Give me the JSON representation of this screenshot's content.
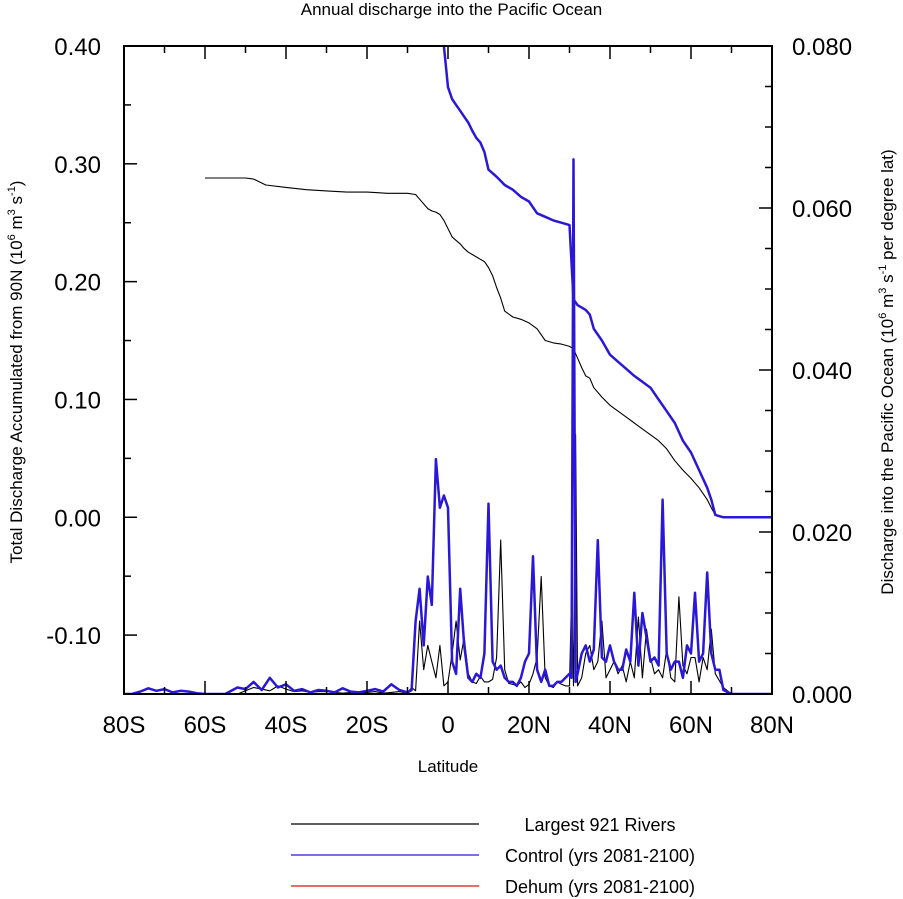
{
  "chart_data": {
    "type": "line",
    "title": "Annual discharge into the Pacific Ocean",
    "xlabel": "Latitude",
    "ylabel_left": "Total Discharge Accumulated from 90N (10⁶ m³ s⁻¹)",
    "ylabel_left_parts": {
      "pre": "Total Discharge Accumulated from 90N (10",
      "e1": "6",
      "mid1": " m",
      "e2": "3",
      "mid2": " s",
      "e3": "-1",
      "post": ")"
    },
    "ylabel_right": "Discharge into the Pacific Ocean (10⁶ m³ s⁻¹ per degree lat)",
    "ylabel_right_parts": {
      "pre": "Discharge into the Pacific Ocean (10",
      "e1": "6",
      "mid1": " m",
      "e2": "3",
      "mid2": " s",
      "e3": "-1",
      "post": " per degree lat)"
    },
    "xlim": [
      -80,
      80
    ],
    "ylim_left": [
      -0.15,
      0.4
    ],
    "ylim_right": [
      0.0,
      0.08
    ],
    "x_ticks": [
      {
        "value": -80,
        "label": "80S"
      },
      {
        "value": -60,
        "label": "60S"
      },
      {
        "value": -40,
        "label": "40S"
      },
      {
        "value": -20,
        "label": "20S"
      },
      {
        "value": 0,
        "label": "0"
      },
      {
        "value": 20,
        "label": "20N"
      },
      {
        "value": 40,
        "label": "40N"
      },
      {
        "value": 60,
        "label": "60N"
      },
      {
        "value": 80,
        "label": "80N"
      }
    ],
    "y_left_ticks": [
      {
        "value": 0.4,
        "label": "0.40"
      },
      {
        "value": 0.3,
        "label": "0.30"
      },
      {
        "value": 0.2,
        "label": "0.20"
      },
      {
        "value": 0.1,
        "label": "0.10"
      },
      {
        "value": 0.0,
        "label": "0.00"
      },
      {
        "value": -0.1,
        "label": "-0.10"
      }
    ],
    "y_right_ticks": [
      {
        "value": 0.08,
        "label": "0.080"
      },
      {
        "value": 0.06,
        "label": "0.060"
      },
      {
        "value": 0.04,
        "label": "0.040"
      },
      {
        "value": 0.02,
        "label": "0.020"
      },
      {
        "value": 0.0,
        "label": "0.000"
      }
    ],
    "grid": false,
    "legend_position": "bottom-center",
    "series": [
      {
        "name": "Largest 921 Rivers",
        "color": "#000000",
        "axis": "left",
        "x": [
          -60,
          -50,
          -48,
          -45,
          -40,
          -35,
          -30,
          -25,
          -20,
          -15,
          -10,
          -8,
          -7,
          -5,
          -4,
          -3,
          -2,
          -1,
          0,
          1,
          2,
          3,
          4,
          5,
          6,
          7,
          8,
          9,
          10,
          11,
          12,
          13,
          14,
          16,
          18,
          20,
          22,
          24,
          26,
          28,
          30,
          31,
          32,
          33,
          34,
          35,
          36,
          38,
          40,
          42,
          44,
          46,
          48,
          50,
          52,
          54,
          56,
          58,
          60,
          62,
          64,
          65,
          66,
          68,
          70,
          75,
          80
        ],
        "y": [
          0.288,
          0.288,
          0.287,
          0.282,
          0.28,
          0.278,
          0.277,
          0.276,
          0.276,
          0.275,
          0.275,
          0.274,
          0.27,
          0.262,
          0.26,
          0.259,
          0.257,
          0.252,
          0.245,
          0.238,
          0.235,
          0.232,
          0.228,
          0.225,
          0.223,
          0.221,
          0.219,
          0.217,
          0.212,
          0.205,
          0.195,
          0.186,
          0.175,
          0.17,
          0.168,
          0.165,
          0.16,
          0.15,
          0.148,
          0.147,
          0.145,
          0.143,
          0.135,
          0.127,
          0.12,
          0.118,
          0.11,
          0.102,
          0.095,
          0.09,
          0.085,
          0.08,
          0.075,
          0.07,
          0.065,
          0.058,
          0.048,
          0.04,
          0.033,
          0.025,
          0.015,
          0.008,
          0.002,
          0.0,
          0.0,
          0.0,
          0.0
        ]
      },
      {
        "name": "Control (yrs 2081-2100)",
        "color": "#2a18d6",
        "axis": "left",
        "x": [
          -1,
          0,
          1,
          2,
          3,
          4,
          5,
          6,
          7,
          8,
          9,
          10,
          11,
          12,
          14,
          16,
          18,
          20,
          22,
          24,
          26,
          28,
          30,
          31,
          32,
          33,
          34,
          35,
          36,
          38,
          40,
          42,
          44,
          46,
          48,
          50,
          52,
          54,
          56,
          58,
          60,
          62,
          64,
          65,
          66,
          68,
          70,
          75,
          80
        ],
        "y": [
          0.4,
          0.365,
          0.355,
          0.35,
          0.345,
          0.34,
          0.335,
          0.328,
          0.322,
          0.318,
          0.31,
          0.295,
          0.292,
          0.289,
          0.282,
          0.278,
          0.272,
          0.268,
          0.258,
          0.255,
          0.252,
          0.25,
          0.248,
          0.185,
          0.18,
          0.178,
          0.176,
          0.172,
          0.16,
          0.15,
          0.138,
          0.132,
          0.126,
          0.12,
          0.115,
          0.11,
          0.1,
          0.09,
          0.08,
          0.065,
          0.055,
          0.04,
          0.025,
          0.015,
          0.002,
          0.0,
          0.0,
          0.0,
          0.0
        ]
      },
      {
        "name": "Dehum (yrs 2081-2100)",
        "color": "#e01010",
        "axis": "left",
        "x": [],
        "y": []
      },
      {
        "name": "Largest 921 Rivers",
        "color": "#000000",
        "axis": "right",
        "show_in_legend": false,
        "x": [
          -80,
          -75,
          -70,
          -65,
          -60,
          -55,
          -52,
          -50,
          -48,
          -46,
          -44,
          -42,
          -40,
          -38,
          -36,
          -34,
          -32,
          -30,
          -28,
          -26,
          -24,
          -22,
          -20,
          -18,
          -16,
          -14,
          -12,
          -10,
          -9,
          -8,
          -7,
          -6,
          -5,
          -4,
          -3,
          -2,
          -1,
          0,
          1,
          2,
          3,
          4,
          5,
          6,
          7,
          8,
          9,
          10,
          11,
          12,
          13,
          14,
          15,
          16,
          17,
          18,
          19,
          20,
          21,
          22,
          23,
          24,
          25,
          26,
          27,
          28,
          29,
          30,
          30.5,
          31,
          31.5,
          32,
          33,
          34,
          35,
          36,
          37,
          38,
          39,
          40,
          41,
          42,
          43,
          44,
          45,
          46,
          47,
          48,
          49,
          50,
          51,
          52,
          53,
          54,
          55,
          56,
          57,
          58,
          59,
          60,
          61,
          62,
          63,
          64,
          65,
          66,
          68,
          70,
          75,
          80
        ],
        "y": [
          0.0,
          0.0,
          0.0,
          0.0,
          0.0,
          0.0,
          0.0,
          0.0004,
          0.0008,
          0.0006,
          0.0004,
          0.001,
          0.0006,
          0.0003,
          0.0004,
          0.0002,
          0.0003,
          0.0003,
          0.0002,
          0.0001,
          0.0002,
          0.0001,
          0.0002,
          0.0003,
          0.0001,
          0.0002,
          0.0003,
          0.0001,
          0.0008,
          0.0004,
          0.009,
          0.003,
          0.006,
          0.004,
          0.002,
          0.006,
          0.001,
          0.0015,
          0.005,
          0.009,
          0.0042,
          0.007,
          0.0025,
          0.0015,
          0.0013,
          0.0022,
          0.0015,
          0.0015,
          0.0018,
          0.0045,
          0.019,
          0.003,
          0.0013,
          0.0012,
          0.001,
          0.0015,
          0.0008,
          0.0012,
          0.0025,
          0.0045,
          0.0145,
          0.002,
          0.001,
          0.0008,
          0.0015,
          0.0012,
          0.001,
          0.001,
          0.012,
          0.001,
          0.032,
          0.001,
          0.002,
          0.005,
          0.006,
          0.003,
          0.004,
          0.009,
          0.002,
          0.003,
          0.004,
          0.0025,
          0.0035,
          0.0015,
          0.004,
          0.002,
          0.0095,
          0.002,
          0.008,
          0.0045,
          0.0025,
          0.003,
          0.002,
          0.0055,
          0.002,
          0.0015,
          0.012,
          0.0035,
          0.0025,
          0.0045,
          0.0045,
          0.0015,
          0.0045,
          0.003,
          0.008,
          0.0025,
          0.0008,
          0.0,
          0.0,
          0.0
        ]
      },
      {
        "name": "Control (yrs 2081-2100)",
        "color": "#2a18d6",
        "axis": "right",
        "show_in_legend": false,
        "x": [
          -80,
          -78,
          -76,
          -74,
          -72,
          -70,
          -68,
          -66,
          -64,
          -62,
          -60,
          -55,
          -52,
          -50,
          -48,
          -46,
          -44,
          -42,
          -40,
          -38,
          -36,
          -34,
          -32,
          -30,
          -28,
          -26,
          -24,
          -22,
          -20,
          -18,
          -16,
          -14,
          -12,
          -10,
          -9,
          -8,
          -7,
          -6,
          -5,
          -4,
          -3,
          -2,
          -1,
          0,
          1,
          2,
          3,
          4,
          5,
          6,
          7,
          8,
          9,
          10,
          11,
          12,
          13,
          14,
          15,
          16,
          17,
          18,
          19,
          20,
          21,
          22,
          23,
          24,
          25,
          26,
          27,
          28,
          29,
          30,
          30.5,
          31,
          31.5,
          32,
          33,
          34,
          35,
          36,
          37,
          38,
          39,
          40,
          41,
          42,
          43,
          44,
          45,
          46,
          47,
          48,
          49,
          50,
          51,
          52,
          53,
          54,
          55,
          56,
          57,
          58,
          59,
          60,
          61,
          62,
          63,
          64,
          65,
          66,
          67,
          68,
          70,
          75,
          80
        ],
        "y": [
          0.0,
          0.0,
          0.0003,
          0.0007,
          0.0004,
          0.0006,
          0.0002,
          0.0004,
          0.0003,
          0.0001,
          0.0,
          0.0,
          0.0008,
          0.0006,
          0.0015,
          0.0005,
          0.002,
          0.0008,
          0.0012,
          0.0004,
          0.0006,
          0.0002,
          0.0005,
          0.0004,
          0.0002,
          0.0007,
          0.0003,
          0.0002,
          0.0004,
          0.0006,
          0.0003,
          0.0012,
          0.0005,
          0.0002,
          0.0005,
          0.009,
          0.013,
          0.006,
          0.0145,
          0.011,
          0.029,
          0.023,
          0.0245,
          0.023,
          0.004,
          0.0025,
          0.013,
          0.006,
          0.002,
          0.0015,
          0.0025,
          0.002,
          0.005,
          0.0235,
          0.004,
          0.003,
          0.0035,
          0.002,
          0.0015,
          0.0015,
          0.001,
          0.002,
          0.004,
          0.005,
          0.017,
          0.003,
          0.0015,
          0.003,
          0.001,
          0.001,
          0.0015,
          0.0015,
          0.002,
          0.0025,
          0.002,
          0.066,
          0.0015,
          0.0025,
          0.005,
          0.006,
          0.004,
          0.0055,
          0.019,
          0.0045,
          0.004,
          0.006,
          0.004,
          0.003,
          0.003,
          0.0055,
          0.004,
          0.0125,
          0.0035,
          0.01,
          0.007,
          0.004,
          0.0045,
          0.0035,
          0.024,
          0.005,
          0.003,
          0.004,
          0.004,
          0.002,
          0.006,
          0.005,
          0.0125,
          0.004,
          0.005,
          0.015,
          0.005,
          0.003,
          0.003,
          0.0005,
          0.0,
          0.0,
          0.0
        ]
      }
    ]
  }
}
